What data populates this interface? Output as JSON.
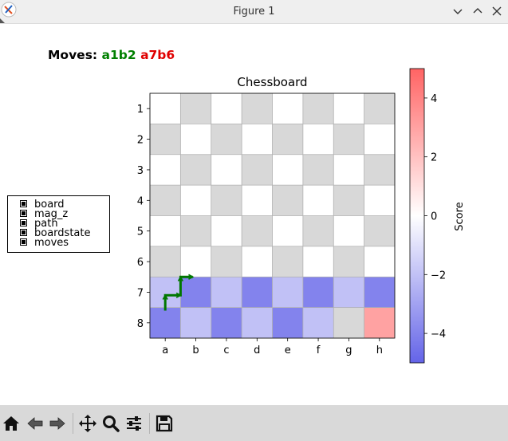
{
  "window": {
    "title": "Figure 1"
  },
  "moves": {
    "label": "Moves:",
    "move1": "a1b2",
    "move2": "a7b6"
  },
  "legend": {
    "items": [
      "board",
      "mag_z",
      "path",
      "boardstate",
      "moves"
    ]
  },
  "chart_data": {
    "type": "heatmap",
    "title": "Chessboard",
    "x_ticks": [
      "a",
      "b",
      "c",
      "d",
      "e",
      "f",
      "g",
      "h"
    ],
    "y_ticks": [
      "1",
      "2",
      "3",
      "4",
      "5",
      "6",
      "7",
      "8"
    ],
    "board_colors": {
      "light": "#ffffff",
      "dark": "#d8d8d8"
    },
    "scored_rows": {
      "7": [
        -2.0,
        -4.0,
        -2.0,
        -4.0,
        -2.0,
        -4.0,
        -2.0,
        -4.0
      ],
      "8": [
        -4.0,
        -2.0,
        -4.0,
        -2.0,
        -4.0,
        -2.0,
        0.0,
        3.0
      ]
    },
    "colorbar": {
      "label": "Score",
      "range": [
        -5,
        5
      ],
      "ticks": [
        4,
        2,
        0,
        -2,
        -4
      ],
      "tick_labels": [
        "4",
        "2",
        "0",
        "−2",
        "−4"
      ],
      "colors": {
        "low": "#6464e8",
        "mid": "#ffffff",
        "high": "#ff6464"
      }
    },
    "path": {
      "color": "#007700",
      "from": "a7",
      "to": "b6",
      "points": [
        [
          0.0,
          6.6
        ],
        [
          0.0,
          6.1
        ],
        [
          0.5,
          6.1
        ],
        [
          0.5,
          5.5
        ],
        [
          0.9,
          5.5
        ]
      ]
    },
    "grid": true
  },
  "toolbar": {
    "tools": [
      "home-icon",
      "back-icon",
      "forward-icon",
      "pan-icon",
      "zoom-icon",
      "configure-subplots-icon",
      "save-icon"
    ]
  }
}
